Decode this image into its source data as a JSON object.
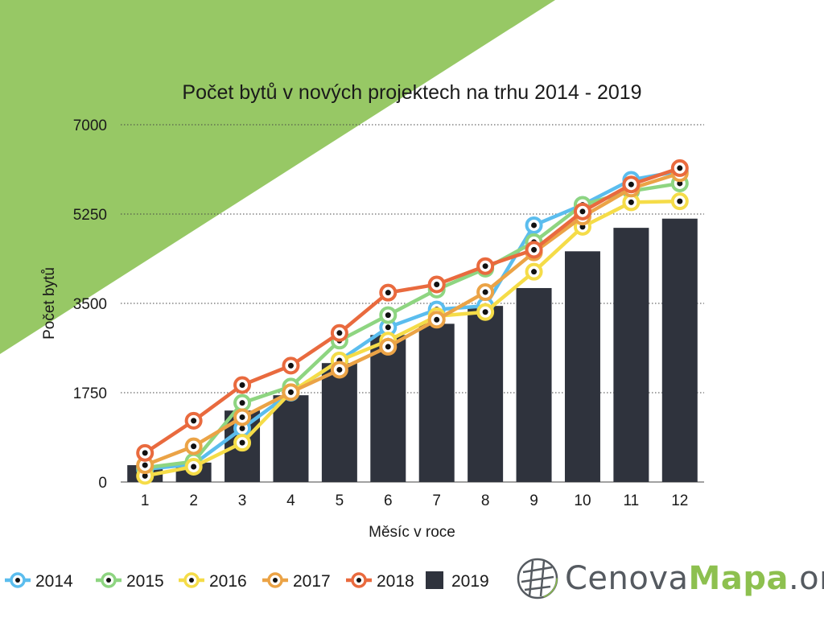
{
  "brand": {
    "part1": "Cenova",
    "part2": "Mapa",
    "part3": ".org",
    "icon": "globe-grid-icon",
    "color_primary": "#555a60",
    "color_accent": "#8dc04f"
  },
  "background": {
    "accent_color": "#97c865"
  },
  "chart_data": {
    "type": "bar+line",
    "title": "Počet bytů v nových projektech na trhu 2014 - 2019",
    "xlabel": "Měsíc v roce",
    "ylabel": "Počet bytů",
    "categories": [
      "1",
      "2",
      "3",
      "4",
      "5",
      "6",
      "7",
      "8",
      "9",
      "10",
      "11",
      "12"
    ],
    "ylim": [
      0,
      7000
    ],
    "yticks": [
      0,
      1750,
      3500,
      5250,
      7000
    ],
    "ytick_labels": [
      "0",
      "1750",
      "3500",
      "5250",
      "7000"
    ],
    "grid": "horizontal dotted",
    "legend_position": "bottom-left",
    "bar_series": {
      "name": "2019",
      "color": "#2f333d",
      "values": [
        330,
        380,
        1400,
        1700,
        2330,
        2880,
        3100,
        3450,
        3800,
        4520,
        4980,
        5160
      ]
    },
    "line_series": [
      {
        "name": "2014",
        "color": "#5bbdee",
        "values": [
          250,
          350,
          1050,
          1750,
          2380,
          3030,
          3380,
          3450,
          5030,
          5430,
          5920,
          6090
        ]
      },
      {
        "name": "2015",
        "color": "#8ed581",
        "values": [
          280,
          400,
          1550,
          1870,
          2770,
          3270,
          3770,
          4180,
          4700,
          5430,
          5700,
          5850
        ]
      },
      {
        "name": "2016",
        "color": "#f5dc48",
        "values": [
          120,
          300,
          770,
          1760,
          2380,
          2770,
          3250,
          3330,
          4120,
          5000,
          5480,
          5500
        ]
      },
      {
        "name": "2017",
        "color": "#eba346",
        "values": [
          330,
          700,
          1270,
          1760,
          2200,
          2650,
          3180,
          3720,
          4500,
          5200,
          5750,
          6050
        ]
      },
      {
        "name": "2018",
        "color": "#e96a3e",
        "values": [
          570,
          1200,
          1900,
          2280,
          2920,
          3710,
          3870,
          4230,
          4550,
          5300,
          5830,
          6150
        ]
      }
    ]
  }
}
